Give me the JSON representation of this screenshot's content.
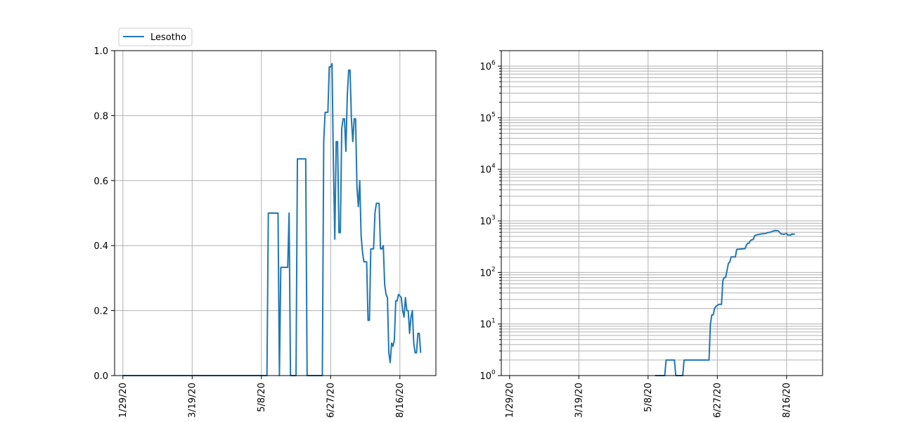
{
  "chart_data": [
    {
      "type": "line",
      "yscale": "linear",
      "ylim": [
        0,
        1.0
      ],
      "xlim": [
        "2020-01-23",
        "2020-09-11"
      ],
      "grid": true,
      "legend": {
        "placement": "top-left-outside",
        "entries": [
          "Lesotho"
        ]
      },
      "x_ticks": [
        "1/29/20",
        "3/19/20",
        "5/8/20",
        "6/27/20",
        "8/16/20"
      ],
      "y_ticks": [
        "0.0",
        "0.2",
        "0.4",
        "0.6",
        "0.8",
        "1.0"
      ],
      "series": [
        {
          "name": "Lesotho",
          "color": "#1f77b4",
          "points": [
            [
              "2020-01-29",
              0
            ],
            [
              "2020-05-12",
              0
            ],
            [
              "2020-05-13",
              0.5
            ],
            [
              "2020-05-20",
              0.5
            ],
            [
              "2020-05-21",
              0
            ],
            [
              "2020-05-22",
              0.333
            ],
            [
              "2020-05-27",
              0.333
            ],
            [
              "2020-05-28",
              0.5
            ],
            [
              "2020-05-29",
              0
            ],
            [
              "2020-06-02",
              0
            ],
            [
              "2020-06-03",
              0.667
            ],
            [
              "2020-06-09",
              0.667
            ],
            [
              "2020-06-10",
              0
            ],
            [
              "2020-06-21",
              0
            ],
            [
              "2020-06-22",
              0.72
            ],
            [
              "2020-06-23",
              0.81
            ],
            [
              "2020-06-25",
              0.81
            ],
            [
              "2020-06-26",
              0.95
            ],
            [
              "2020-06-27",
              0.95
            ],
            [
              "2020-06-28",
              0.96
            ],
            [
              "2020-06-29",
              0.65
            ],
            [
              "2020-06-30",
              0.42
            ],
            [
              "2020-07-01",
              0.72
            ],
            [
              "2020-07-02",
              0.72
            ],
            [
              "2020-07-03",
              0.44
            ],
            [
              "2020-07-04",
              0.44
            ],
            [
              "2020-07-05",
              0.76
            ],
            [
              "2020-07-06",
              0.79
            ],
            [
              "2020-07-07",
              0.79
            ],
            [
              "2020-07-08",
              0.69
            ],
            [
              "2020-07-09",
              0.86
            ],
            [
              "2020-07-10",
              0.94
            ],
            [
              "2020-07-11",
              0.94
            ],
            [
              "2020-07-12",
              0.79
            ],
            [
              "2020-07-13",
              0.72
            ],
            [
              "2020-07-14",
              0.79
            ],
            [
              "2020-07-15",
              0.79
            ],
            [
              "2020-07-16",
              0.58
            ],
            [
              "2020-07-17",
              0.52
            ],
            [
              "2020-07-18",
              0.6
            ],
            [
              "2020-07-19",
              0.43
            ],
            [
              "2020-07-20",
              0.38
            ],
            [
              "2020-07-21",
              0.35
            ],
            [
              "2020-07-23",
              0.35
            ],
            [
              "2020-07-24",
              0.17
            ],
            [
              "2020-07-25",
              0.17
            ],
            [
              "2020-07-26",
              0.39
            ],
            [
              "2020-07-28",
              0.39
            ],
            [
              "2020-07-29",
              0.5
            ],
            [
              "2020-07-30",
              0.53
            ],
            [
              "2020-08-01",
              0.53
            ],
            [
              "2020-08-02",
              0.39
            ],
            [
              "2020-08-03",
              0.39
            ],
            [
              "2020-08-04",
              0.4
            ],
            [
              "2020-08-05",
              0.28
            ],
            [
              "2020-08-06",
              0.25
            ],
            [
              "2020-08-07",
              0.24
            ],
            [
              "2020-08-08",
              0.07
            ],
            [
              "2020-08-09",
              0.04
            ],
            [
              "2020-08-10",
              0.1
            ],
            [
              "2020-08-11",
              0.09
            ],
            [
              "2020-08-12",
              0.11
            ],
            [
              "2020-08-13",
              0.23
            ],
            [
              "2020-08-14",
              0.23
            ],
            [
              "2020-08-15",
              0.25
            ],
            [
              "2020-08-17",
              0.24
            ],
            [
              "2020-08-18",
              0.2
            ],
            [
              "2020-08-19",
              0.18
            ],
            [
              "2020-08-20",
              0.24
            ],
            [
              "2020-08-21",
              0.2
            ],
            [
              "2020-08-22",
              0.2
            ],
            [
              "2020-08-23",
              0.13
            ],
            [
              "2020-08-24",
              0.18
            ],
            [
              "2020-08-25",
              0.2
            ],
            [
              "2020-08-26",
              0.1
            ],
            [
              "2020-08-27",
              0.07
            ],
            [
              "2020-08-28",
              0.07
            ],
            [
              "2020-08-29",
              0.13
            ],
            [
              "2020-08-30",
              0.13
            ],
            [
              "2020-08-31",
              0.07
            ]
          ]
        }
      ]
    },
    {
      "type": "line",
      "yscale": "log",
      "ylim": [
        1,
        2000000
      ],
      "xlim": [
        "2020-01-23",
        "2020-09-11"
      ],
      "grid": true,
      "x_ticks": [
        "1/29/20",
        "3/19/20",
        "5/8/20",
        "6/27/20",
        "8/16/20"
      ],
      "y_ticks": [
        {
          "base": "10",
          "exp": "0"
        },
        {
          "base": "10",
          "exp": "1"
        },
        {
          "base": "10",
          "exp": "2"
        },
        {
          "base": "10",
          "exp": "3"
        },
        {
          "base": "10",
          "exp": "4"
        },
        {
          "base": "10",
          "exp": "5"
        },
        {
          "base": "10",
          "exp": "6"
        }
      ],
      "series": [
        {
          "color": "#1f77b4",
          "points": [
            [
              "2020-05-13",
              1
            ],
            [
              "2020-05-20",
              1
            ],
            [
              "2020-05-21",
              2
            ],
            [
              "2020-05-27",
              2
            ],
            [
              "2020-05-28",
              1
            ],
            [
              "2020-06-02",
              1
            ],
            [
              "2020-06-03",
              2
            ],
            [
              "2020-06-21",
              2
            ],
            [
              "2020-06-22",
              10
            ],
            [
              "2020-06-23",
              15
            ],
            [
              "2020-06-24",
              15
            ],
            [
              "2020-06-25",
              20
            ],
            [
              "2020-06-26",
              22
            ],
            [
              "2020-06-27",
              23
            ],
            [
              "2020-06-28",
              24
            ],
            [
              "2020-06-30",
              24
            ],
            [
              "2020-07-01",
              70
            ],
            [
              "2020-07-02",
              80
            ],
            [
              "2020-07-03",
              80
            ],
            [
              "2020-07-05",
              150
            ],
            [
              "2020-07-06",
              160
            ],
            [
              "2020-07-07",
              200
            ],
            [
              "2020-07-10",
              200
            ],
            [
              "2020-07-11",
              280
            ],
            [
              "2020-07-17",
              290
            ],
            [
              "2020-07-18",
              340
            ],
            [
              "2020-07-19",
              370
            ],
            [
              "2020-07-20",
              370
            ],
            [
              "2020-07-21",
              420
            ],
            [
              "2020-07-23",
              440
            ],
            [
              "2020-07-24",
              520
            ],
            [
              "2020-07-26",
              540
            ],
            [
              "2020-07-29",
              560
            ],
            [
              "2020-08-01",
              570
            ],
            [
              "2020-08-02",
              590
            ],
            [
              "2020-08-04",
              600
            ],
            [
              "2020-08-06",
              630
            ],
            [
              "2020-08-08",
              650
            ],
            [
              "2020-08-10",
              640
            ],
            [
              "2020-08-12",
              560
            ],
            [
              "2020-08-14",
              550
            ],
            [
              "2020-08-16",
              570
            ],
            [
              "2020-08-17",
              530
            ],
            [
              "2020-08-19",
              530
            ],
            [
              "2020-08-20",
              560
            ],
            [
              "2020-08-21",
              550
            ],
            [
              "2020-08-22",
              560
            ]
          ]
        }
      ]
    }
  ]
}
